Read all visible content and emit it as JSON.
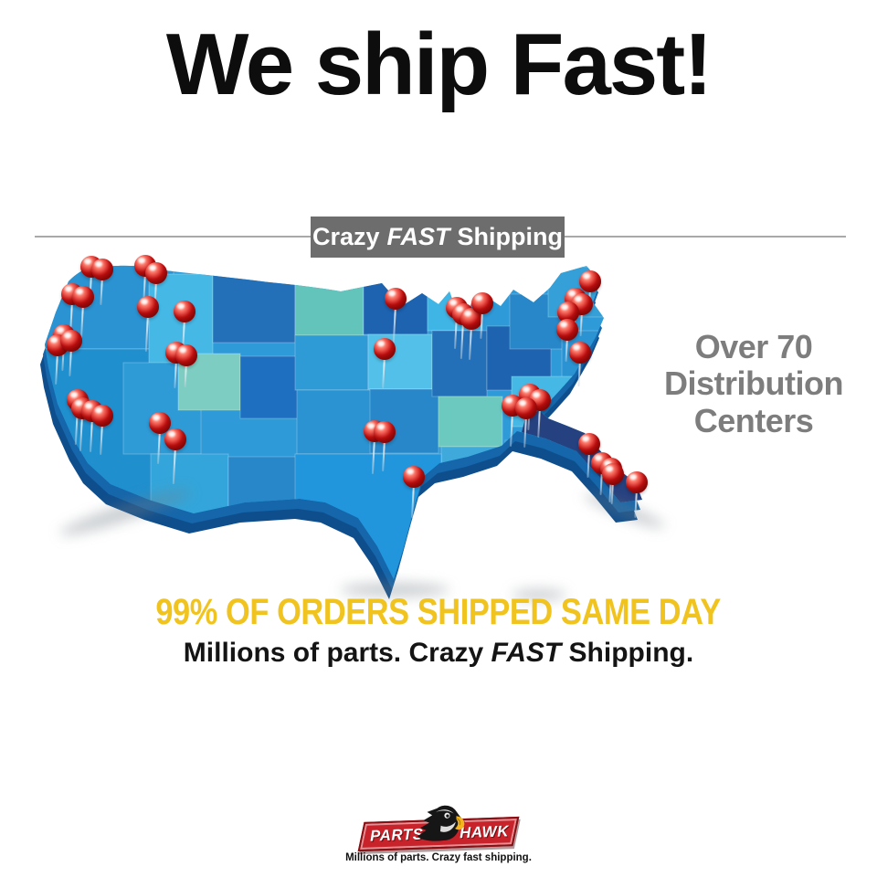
{
  "title": {
    "text": "We ship Fast!",
    "color": "#0D0D0D"
  },
  "divider": {
    "color": "#9A9A9A"
  },
  "ribbon": {
    "word1": "Crazy",
    "word2": "FAST",
    "word3": "Shipping",
    "bg": "#6D6D6D",
    "text_color": "#FFFFFF"
  },
  "map": {
    "pin_color": "#D61414",
    "palette": {
      "base": "#2E9AD8",
      "dark_side": "#0F4E8C",
      "mid_side": "#1566AA",
      "florida_dark": "#26417F",
      "teal": "#7ECDC2",
      "bright_blue": "#2196DC",
      "deep_blue": "#1D63B0",
      "light_blue": "#52C0E8"
    },
    "pins": [
      [
        100,
        292,
        36
      ],
      [
        112,
        295,
        32
      ],
      [
        79,
        322,
        42
      ],
      [
        91,
        325,
        38
      ],
      [
        159,
        291,
        32
      ],
      [
        171,
        299,
        28
      ],
      [
        162,
        336,
        42
      ],
      [
        202,
        341,
        38
      ],
      [
        193,
        386,
        32
      ],
      [
        204,
        389,
        28
      ],
      [
        70,
        367,
        32
      ],
      [
        63,
        378,
        36
      ],
      [
        78,
        373,
        32
      ],
      [
        85,
        438,
        42
      ],
      [
        90,
        447,
        40
      ],
      [
        101,
        450,
        38
      ],
      [
        112,
        455,
        36
      ],
      [
        175,
        463,
        38
      ],
      [
        192,
        481,
        42
      ],
      [
        433,
        327,
        42
      ],
      [
        421,
        382,
        36
      ],
      [
        500,
        337,
        38
      ],
      [
        507,
        344,
        42
      ],
      [
        516,
        349,
        38
      ],
      [
        528,
        332,
        32
      ],
      [
        646,
        308,
        26
      ],
      [
        630,
        327,
        26
      ],
      [
        637,
        333,
        28
      ],
      [
        622,
        342,
        26
      ],
      [
        621,
        361,
        28
      ],
      [
        635,
        386,
        30
      ],
      [
        580,
        432,
        32
      ],
      [
        591,
        438,
        34
      ],
      [
        561,
        444,
        38
      ],
      [
        576,
        447,
        36
      ],
      [
        645,
        486,
        30
      ],
      [
        659,
        507,
        28
      ],
      [
        669,
        513,
        30
      ],
      [
        671,
        519,
        26
      ],
      [
        697,
        528,
        32
      ],
      [
        410,
        472,
        40
      ],
      [
        421,
        473,
        36
      ],
      [
        453,
        522,
        38
      ]
    ]
  },
  "distribution": {
    "line1": "Over 70",
    "line2": "Distribution",
    "line3": "Centers",
    "color": "#7D7D7D"
  },
  "headline": {
    "text": "99% OF ORDERS SHIPPED SAME DAY",
    "color": "#F1C31E"
  },
  "subheadline": {
    "pre": "Millions of parts. Crazy ",
    "em": "FAST",
    "post": " Shipping."
  },
  "logo": {
    "left": "PARTS",
    "right": "HAWK",
    "tagline": "Millions of parts. Crazy fast shipping.",
    "ribbon_color": "#C8232B"
  }
}
